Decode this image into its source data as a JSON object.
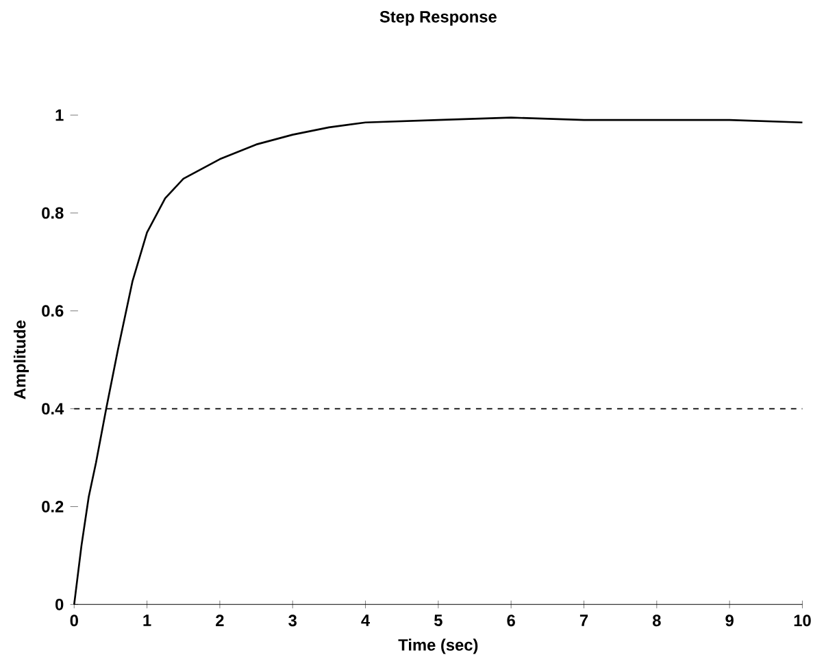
{
  "chart_data": {
    "type": "line",
    "title": "Step Response",
    "xlabel": "Time (sec)",
    "ylabel": "Amplitude",
    "xlim": [
      0,
      10
    ],
    "ylim": [
      0,
      1
    ],
    "xticks": [
      0,
      1,
      2,
      3,
      4,
      5,
      6,
      7,
      8,
      9,
      10
    ],
    "yticks": [
      0,
      0.2,
      0.4,
      0.6,
      0.8,
      1
    ],
    "series": [
      {
        "color": "#000000",
        "x": [
          0,
          0.1,
          0.2,
          0.3,
          0.44,
          0.6,
          0.8,
          1,
          1.25,
          1.5,
          2,
          2.5,
          3,
          3.5,
          4,
          5,
          6,
          7,
          8,
          9,
          10
        ],
        "values": [
          0,
          0.12,
          0.22,
          0.29,
          0.4,
          0.52,
          0.66,
          0.76,
          0.83,
          0.87,
          0.91,
          0.94,
          0.96,
          0.975,
          0.985,
          0.99,
          0.995,
          0.99,
          0.99,
          0.99,
          0.985
        ]
      }
    ],
    "ref_lines": [
      {
        "axis": "y",
        "value": 0.4,
        "line_style": "dashed",
        "color": "#000000"
      }
    ]
  }
}
